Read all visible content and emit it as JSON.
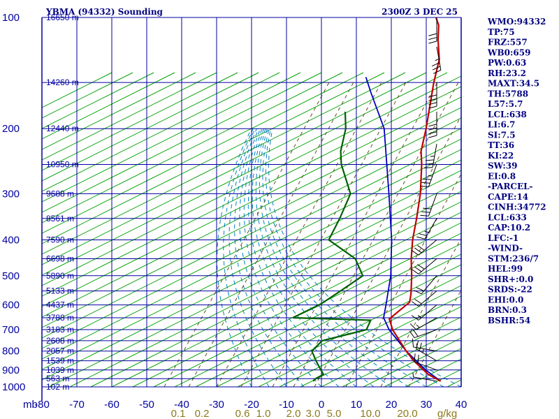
{
  "header": {
    "station": "YBMA (94332) Sounding",
    "time": "2300Z  3 DEC 25"
  },
  "indices": [
    "WMO:94332",
    "TP:75",
    "FRZ:557",
    "WB0:659",
    "PW:0.63",
    "RH:23.2",
    "MAXT:34.5",
    "TH:5788",
    "L57:5.7",
    "LCL:638",
    "LI:6.7",
    "SI:7.5",
    "TT:36",
    "KI:22",
    "SW:39",
    "EI:0.8",
    "-PARCEL-",
    "CAPE:14",
    "CINH:34772",
    "LCL:633",
    "CAP:10.2",
    "LFC:-1",
    "-WIND-",
    "STM:236/7",
    "HEL:99",
    "SHR+:0.0",
    "SRDS:-22",
    "EHI:0.0",
    "BRN:0.3",
    "BSHR:54"
  ],
  "colors": {
    "isobar": "#0000a0",
    "isotherm": "#0000a0",
    "dry_adiabat": "#00a000",
    "moist_adiabat": "#0080c0",
    "mixing_ratio": "#605020",
    "temperature": "#c00000",
    "dewpoint": "#006000",
    "parcel": "#0000c0",
    "wind": "#000000"
  },
  "chart_data": {
    "type": "line",
    "subtype": "skew-t log-p sounding",
    "pressure_ticks": [
      100,
      200,
      300,
      400,
      500,
      600,
      700,
      800,
      900,
      1000
    ],
    "pressure_labels": [
      "100",
      "200",
      "300",
      "400",
      "500",
      "600",
      "700",
      "800",
      "900",
      "1000"
    ],
    "temperature_ticks": [
      -80,
      -70,
      -60,
      -50,
      -40,
      -30,
      -20,
      -10,
      0,
      10,
      20,
      30,
      40
    ],
    "temperature_labels": [
      "-80",
      "-70",
      "-60",
      "-50",
      "-40",
      "-30",
      "-20",
      "-10",
      "0",
      "10",
      "20",
      "30",
      "40"
    ],
    "x_axis_prefix": "mb",
    "mixing_ratio_labels": [
      "0.1",
      "0.2",
      "0.6",
      "1.0",
      "2.0",
      "3.0",
      "5.0",
      "10.0",
      "20.0",
      "g/kg"
    ],
    "height_labels": [
      {
        "p": 100,
        "label": "16650 m"
      },
      {
        "p": 150,
        "label": "14260 m"
      },
      {
        "p": 200,
        "label": "12440 m"
      },
      {
        "p": 250,
        "label": "10950 m"
      },
      {
        "p": 300,
        "label": "9688 m"
      },
      {
        "p": 350,
        "label": "8561 m"
      },
      {
        "p": 400,
        "label": "7590 m"
      },
      {
        "p": 450,
        "label": "6698 m"
      },
      {
        "p": 500,
        "label": "5890 m"
      },
      {
        "p": 550,
        "label": "5133 m"
      },
      {
        "p": 600,
        "label": "4437 m"
      },
      {
        "p": 650,
        "label": "3788 m"
      },
      {
        "p": 700,
        "label": "3183 m"
      },
      {
        "p": 750,
        "label": "2608 m"
      },
      {
        "p": 800,
        "label": "2057 m"
      },
      {
        "p": 850,
        "label": "1539 m"
      },
      {
        "p": 900,
        "label": "1039 m"
      },
      {
        "p": 950,
        "label": "563 m"
      },
      {
        "p": 1000,
        "label": "102 m"
      }
    ],
    "temperature_profile": [
      {
        "p": 965,
        "t": 32.5
      },
      {
        "p": 925,
        "t": 27
      },
      {
        "p": 850,
        "t": 19
      },
      {
        "p": 800,
        "t": 14
      },
      {
        "p": 700,
        "t": 4
      },
      {
        "p": 655,
        "t": 0
      },
      {
        "p": 620,
        "t": 0.5
      },
      {
        "p": 590,
        "t": 1
      },
      {
        "p": 560,
        "t": -1
      },
      {
        "p": 500,
        "t": -6
      },
      {
        "p": 450,
        "t": -11
      },
      {
        "p": 400,
        "t": -16
      },
      {
        "p": 350,
        "t": -21
      },
      {
        "p": 300,
        "t": -27
      },
      {
        "p": 250,
        "t": -35
      },
      {
        "p": 230,
        "t": -39
      },
      {
        "p": 200,
        "t": -44
      },
      {
        "p": 150,
        "t": -55
      },
      {
        "p": 130,
        "t": -60
      },
      {
        "p": 115,
        "t": -66
      },
      {
        "p": 105,
        "t": -70
      },
      {
        "p": 100,
        "t": -73
      }
    ],
    "dewpoint_profile": [
      {
        "p": 965,
        "t": -4
      },
      {
        "p": 950,
        "t": -4
      },
      {
        "p": 925,
        "t": -3
      },
      {
        "p": 900,
        "t": -5
      },
      {
        "p": 850,
        "t": -9
      },
      {
        "p": 800,
        "t": -13
      },
      {
        "p": 750,
        "t": -13
      },
      {
        "p": 700,
        "t": -3.5
      },
      {
        "p": 660,
        "t": -5
      },
      {
        "p": 650,
        "t": -28
      },
      {
        "p": 600,
        "t": -24
      },
      {
        "p": 550,
        "t": -22
      },
      {
        "p": 500,
        "t": -20
      },
      {
        "p": 450,
        "t": -27
      },
      {
        "p": 400,
        "t": -40
      },
      {
        "p": 350,
        "t": -43
      },
      {
        "p": 300,
        "t": -47
      },
      {
        "p": 250,
        "t": -58
      },
      {
        "p": 230,
        "t": -62
      },
      {
        "p": 200,
        "t": -67
      },
      {
        "p": 180,
        "t": -72
      }
    ],
    "parcel_profile": [
      {
        "p": 965,
        "t": 32.5
      },
      {
        "p": 900,
        "t": 25
      },
      {
        "p": 800,
        "t": 14
      },
      {
        "p": 700,
        "t": 3
      },
      {
        "p": 650,
        "t": -2
      },
      {
        "p": 600,
        "t": -5
      },
      {
        "p": 500,
        "t": -12
      },
      {
        "p": 400,
        "t": -22
      },
      {
        "p": 300,
        "t": -36
      },
      {
        "p": 200,
        "t": -56
      },
      {
        "p": 160,
        "t": -70
      },
      {
        "p": 145,
        "t": -76
      }
    ],
    "winds": [
      {
        "p": 965,
        "dir": 280,
        "spd": 8
      },
      {
        "p": 900,
        "dir": 290,
        "spd": 20
      },
      {
        "p": 850,
        "dir": 300,
        "spd": 25
      },
      {
        "p": 800,
        "dir": 280,
        "spd": 15
      },
      {
        "p": 700,
        "dir": 250,
        "spd": 20
      },
      {
        "p": 650,
        "dir": 240,
        "spd": 15
      },
      {
        "p": 600,
        "dir": 230,
        "spd": 15
      },
      {
        "p": 550,
        "dir": 230,
        "spd": 20
      },
      {
        "p": 500,
        "dir": 220,
        "spd": 20
      },
      {
        "p": 450,
        "dir": 230,
        "spd": 30
      },
      {
        "p": 400,
        "dir": 230,
        "spd": 30
      },
      {
        "p": 350,
        "dir": 210,
        "spd": 25
      },
      {
        "p": 300,
        "dir": 200,
        "spd": 30
      },
      {
        "p": 250,
        "dir": 200,
        "spd": 35
      },
      {
        "p": 220,
        "dir": 190,
        "spd": 35
      },
      {
        "p": 180,
        "dir": 180,
        "spd": 40
      },
      {
        "p": 150,
        "dir": 180,
        "spd": 40
      },
      {
        "p": 120,
        "dir": 170,
        "spd": 35
      },
      {
        "p": 100,
        "dir": 180,
        "spd": 30
      }
    ]
  }
}
